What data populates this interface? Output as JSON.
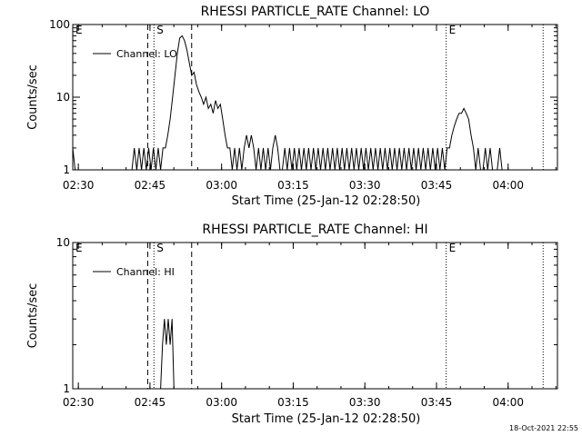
{
  "chart_data": [
    {
      "type": "line",
      "title": "RHESSI PARTICLE_RATE Channel: LO",
      "xlabel": "Start Time (25-Jan-12 02:28:50)",
      "ylabel": "Counts/sec",
      "y_scale": "log",
      "ylim": [
        1,
        100
      ],
      "y_tick_labels": [
        "1",
        "10",
        "100"
      ],
      "x_tick_labels": [
        "02:30",
        "02:45",
        "03:00",
        "03:15",
        "03:30",
        "03:45",
        "04:00"
      ],
      "x_ticks_min": [
        1.17,
        16.17,
        31.17,
        46.17,
        61.17,
        76.17,
        91.17
      ],
      "xlim_min": [
        0,
        101.5
      ],
      "markers": [
        {
          "label": "E",
          "x_min": 0.0,
          "style": "dotted"
        },
        {
          "label": "S",
          "x_min": 17.0,
          "style": "dotted"
        },
        {
          "label": "",
          "x_min": 15.7,
          "style": "dashed"
        },
        {
          "label": "",
          "x_min": 24.9,
          "style": "dashed"
        },
        {
          "label": "E",
          "x_min": 78.2,
          "style": "dotted"
        },
        {
          "label": "",
          "x_min": 98.5,
          "style": "dotted"
        }
      ],
      "legend": "top-left",
      "series": [
        {
          "name": "Channel: LO",
          "x_min": [
            0,
            0.5,
            12.4,
            12.9,
            13.4,
            13.9,
            14.4,
            14.9,
            15.4,
            15.9,
            16.4,
            16.9,
            17.4,
            17.9,
            18.4,
            18.9,
            19.4,
            19.9,
            20.4,
            20.9,
            21.4,
            21.9,
            22.4,
            22.9,
            23.4,
            23.9,
            24.4,
            24.9,
            25.4,
            25.9,
            26.4,
            26.9,
            27.4,
            27.9,
            28.4,
            28.9,
            29.4,
            29.9,
            30.4,
            30.9,
            31.4,
            31.9,
            32.4,
            32.9,
            33.4,
            33.9,
            34.4,
            34.9,
            35.4,
            35.9,
            36.4,
            36.9,
            37.4,
            37.9,
            38.4,
            38.9,
            39.4,
            39.9,
            40.4,
            40.9,
            41.4,
            41.9,
            42.4,
            42.9,
            43.4,
            43.9,
            44.4,
            44.9,
            45.4,
            45.9,
            46.4,
            46.9,
            47.4,
            47.9,
            48.4,
            48.9,
            49.4,
            49.9,
            50.4,
            50.9,
            51.4,
            51.9,
            52.4,
            52.9,
            53.4,
            53.9,
            54.4,
            54.9,
            55.4,
            55.9,
            56.4,
            56.9,
            57.4,
            57.9,
            58.4,
            58.9,
            59.4,
            59.9,
            60.4,
            60.9,
            61.4,
            61.9,
            62.4,
            62.9,
            63.4,
            63.9,
            64.4,
            64.9,
            65.4,
            65.9,
            66.4,
            66.9,
            67.4,
            67.9,
            68.4,
            68.9,
            69.4,
            69.9,
            70.4,
            70.9,
            71.4,
            71.9,
            72.4,
            72.9,
            73.4,
            73.9,
            74.4,
            74.9,
            75.4,
            75.9,
            76.4,
            76.9,
            77.4,
            77.9,
            78.4,
            78.9,
            79.4,
            79.9,
            80.4,
            80.9,
            81.4,
            81.9,
            82.4,
            82.9,
            83.4,
            83.9,
            84.4,
            84.9,
            85.4,
            85.9,
            86.4,
            86.9,
            87.4,
            87.9,
            88.4,
            88.9,
            89.4,
            89.9,
            90.4,
            90.9,
            91.4,
            91.9,
            92.4
          ],
          "y": [
            2,
            1,
            1,
            2,
            1,
            2,
            1,
            2,
            1,
            2,
            1,
            2,
            1,
            2,
            1,
            2,
            2,
            3,
            5,
            10,
            20,
            40,
            65,
            70,
            60,
            45,
            30,
            20,
            22,
            15,
            12,
            10,
            8,
            10,
            7,
            8,
            6,
            9,
            7,
            8,
            5,
            3,
            2,
            2,
            1,
            2,
            1,
            2,
            1,
            2,
            3,
            2,
            3,
            2,
            1,
            2,
            1,
            2,
            1,
            2,
            1,
            2,
            3,
            2,
            1,
            1,
            2,
            1,
            2,
            1,
            2,
            1,
            2,
            1,
            2,
            1,
            2,
            1,
            2,
            1,
            2,
            1,
            2,
            1,
            2,
            1,
            2,
            1,
            2,
            1,
            2,
            1,
            2,
            1,
            2,
            1,
            2,
            1,
            2,
            1,
            2,
            1,
            2,
            1,
            2,
            1,
            2,
            1,
            2,
            1,
            2,
            1,
            2,
            1,
            2,
            1,
            2,
            1,
            2,
            1,
            2,
            1,
            2,
            1,
            2,
            1,
            2,
            1,
            2,
            1,
            2,
            1,
            2,
            1,
            2,
            2,
            3,
            4,
            5,
            6,
            6,
            7,
            6,
            5,
            3,
            2,
            1,
            2,
            1,
            1,
            2,
            1,
            2,
            1,
            1,
            1,
            2,
            1,
            1,
            1,
            1,
            1,
            1,
            1,
            1
          ]
        }
      ]
    },
    {
      "type": "line",
      "title": "RHESSI PARTICLE_RATE Channel: HI",
      "xlabel": "Start Time (25-Jan-12 02:28:50)",
      "ylabel": "Counts/sec",
      "y_scale": "log",
      "ylim": [
        1,
        10
      ],
      "y_tick_labels": [
        "1",
        "10"
      ],
      "x_tick_labels": [
        "02:30",
        "02:45",
        "03:00",
        "03:15",
        "03:30",
        "03:45",
        "04:00"
      ],
      "x_ticks_min": [
        1.17,
        16.17,
        31.17,
        46.17,
        61.17,
        76.17,
        91.17
      ],
      "xlim_min": [
        0,
        101.5
      ],
      "markers": [
        {
          "label": "E",
          "x_min": 0.0,
          "style": "dotted"
        },
        {
          "label": "S",
          "x_min": 17.0,
          "style": "dotted"
        },
        {
          "label": "",
          "x_min": 15.7,
          "style": "dashed"
        },
        {
          "label": "",
          "x_min": 24.9,
          "style": "dashed"
        },
        {
          "label": "E",
          "x_min": 78.2,
          "style": "dotted"
        },
        {
          "label": "",
          "x_min": 98.5,
          "style": "dotted"
        }
      ],
      "legend": "top-left",
      "series": [
        {
          "name": "Channel: HI",
          "x_min": [
            18.4,
            18.8,
            19.2,
            19.6,
            20.0,
            20.4,
            20.8,
            21.2
          ],
          "y": [
            1,
            2,
            3,
            2,
            3,
            2,
            3,
            1
          ]
        }
      ]
    }
  ],
  "timestamp": "18-Oct-2021 22:55"
}
